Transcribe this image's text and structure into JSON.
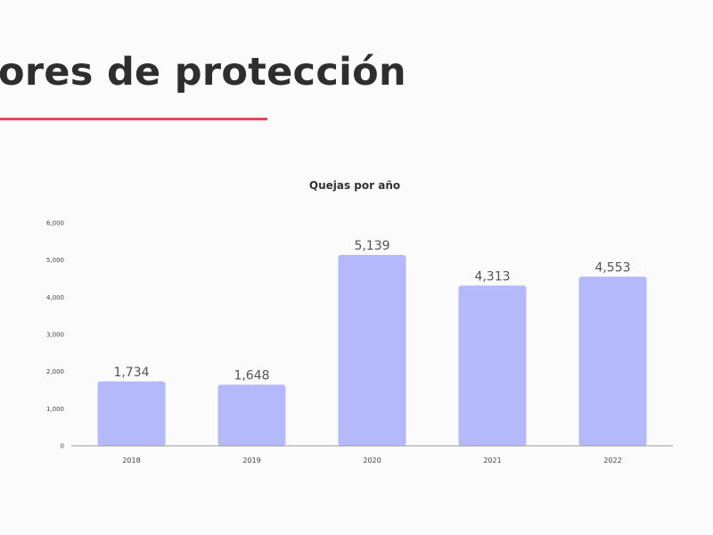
{
  "slide": {
    "title": "ores de protección",
    "accent_color": "#e2475c"
  },
  "chart_data": {
    "type": "bar",
    "title": "Quejas por año",
    "categories": [
      "2018",
      "2019",
      "2020",
      "2021",
      "2022"
    ],
    "values": [
      1734,
      1648,
      5139,
      4313,
      4553
    ],
    "data_labels": [
      "1,734",
      "1,648",
      "5,139",
      "4,313",
      "4,553"
    ],
    "y_ticks": [
      "0",
      "1,000",
      "2,000",
      "3,000",
      "4,000",
      "5,000",
      "6,000"
    ],
    "ylim": [
      0,
      6000
    ],
    "grid": false,
    "bar_color": "#b4b9fb",
    "xlabel": "",
    "ylabel": ""
  }
}
